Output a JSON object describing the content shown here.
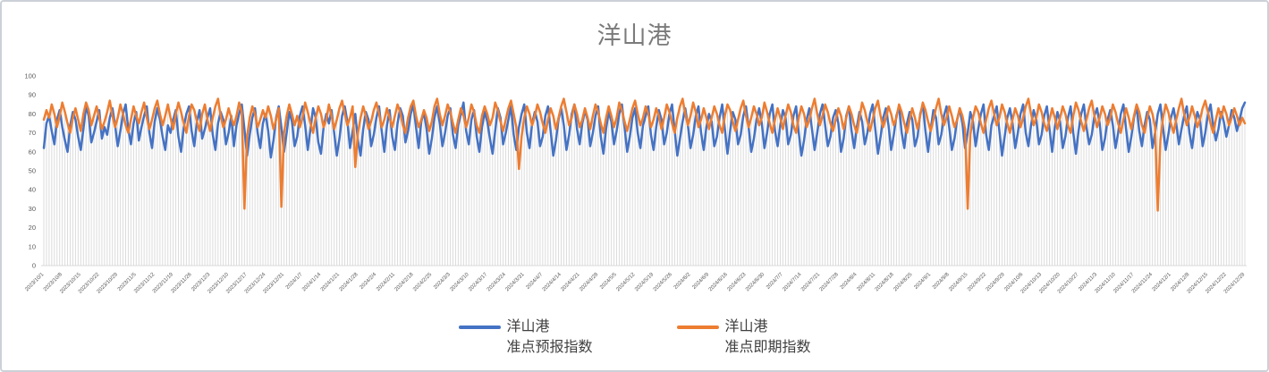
{
  "chart": {
    "title": "洋山港",
    "title_color": "#7b7b7b",
    "background": "#ffffff",
    "frame_border_color": "#ccd1d8"
  },
  "legend": {
    "items": [
      {
        "label_line1": "洋山港",
        "label_line2": "准点预报指数",
        "color": "#4472C4"
      },
      {
        "label_line1": "洋山港",
        "label_line2": "准点即期指数",
        "color": "#ED7D31"
      }
    ]
  },
  "chart_data": {
    "type": "line",
    "title": "洋山港",
    "x_frequency": "daily",
    "x_start_date": "2023/10/1",
    "x_end_date": "2024/12/29",
    "n_points": 456,
    "x_label_every_n_days": 7,
    "x_tick_labels": [
      "2023/10/1",
      "2023/10/8",
      "2023/10/15",
      "2023/10/22",
      "2023/10/29",
      "2023/11/5",
      "2023/11/12",
      "2023/11/19",
      "2023/11/26",
      "2023/12/3",
      "2023/12/10",
      "2023/12/17",
      "2023/12/24",
      "2023/12/31",
      "2024/1/7",
      "2024/1/14",
      "2024/1/21",
      "2024/1/28",
      "2024/2/4",
      "2024/2/11",
      "2024/2/18",
      "2024/2/25",
      "2024/3/3",
      "2024/3/10",
      "2024/3/17",
      "2024/3/24",
      "2024/3/31",
      "2024/4/7",
      "2024/4/14",
      "2024/4/21",
      "2024/4/28",
      "2024/5/5",
      "2024/5/12",
      "2024/5/19",
      "2024/5/26",
      "2024/6/2",
      "2024/6/9",
      "2024/6/16",
      "2024/6/23",
      "2024/6/30",
      "2024/7/7",
      "2024/7/14",
      "2024/7/21",
      "2024/7/28",
      "2024/8/4",
      "2024/8/11",
      "2024/8/18",
      "2024/8/25",
      "2024/9/1",
      "2024/9/8",
      "2024/9/15",
      "2024/9/22",
      "2024/9/29",
      "2024/10/6",
      "2024/10/13",
      "2024/10/20",
      "2024/10/27",
      "2024/11/3",
      "2024/11/10",
      "2024/11/17",
      "2024/11/24",
      "2024/12/1",
      "2024/12/8",
      "2024/12/15",
      "2024/12/22",
      "2024/12/29"
    ],
    "ylim": [
      0,
      100
    ],
    "y_ticks": [
      0,
      10,
      20,
      30,
      40,
      50,
      60,
      70,
      80,
      90,
      100
    ],
    "grid": "vertical-drop-lines",
    "drop_line_color": "#dcdcdc",
    "axis_color": "#d9d9d9",
    "tick_label_color": "#595959",
    "legend_position": "bottom",
    "series": [
      {
        "name": "洋山港 准点预报指数",
        "color": "#4472C4",
        "values": [
          62,
          75,
          79,
          71,
          64,
          77,
          82,
          73,
          66,
          60,
          74,
          81,
          77,
          68,
          61,
          72,
          84,
          79,
          65,
          70,
          76,
          82,
          67,
          73,
          69,
          78,
          83,
          74,
          63,
          71,
          80,
          85,
          72,
          64,
          75,
          81,
          66,
          73,
          79,
          84,
          70,
          62,
          76,
          83,
          77,
          68,
          61,
          74,
          70,
          77,
          82,
          68,
          60,
          73,
          80,
          84,
          71,
          63,
          76,
          82,
          67,
          72,
          78,
          83,
          69,
          61,
          75,
          81,
          77,
          64,
          70,
          79,
          63,
          74,
          80,
          85,
          72,
          58,
          69,
          78,
          83,
          70,
          62,
          75,
          80,
          71,
          57,
          66,
          78,
          84,
          73,
          60,
          70,
          81,
          76,
          63,
          68,
          79,
          84,
          74,
          61,
          72,
          83,
          78,
          65,
          59,
          73,
          80,
          75,
          82,
          70,
          58,
          67,
          79,
          84,
          76,
          62,
          71,
          80,
          66,
          58,
          72,
          81,
          77,
          63,
          69,
          78,
          84,
          71,
          60,
          74,
          82,
          68,
          61,
          75,
          83,
          79,
          65,
          71,
          80,
          85,
          73,
          62,
          76,
          81,
          72,
          59,
          67,
          78,
          84,
          75,
          63,
          70,
          79,
          83,
          69,
          62,
          74,
          80,
          86,
          71,
          64,
          77,
          82,
          68,
          60,
          73,
          81,
          76,
          67,
          59,
          71,
          83,
          78,
          64,
          70,
          77,
          84,
          69,
          61,
          73,
          80,
          85,
          70,
          62,
          75,
          81,
          76,
          63,
          68,
          79,
          84,
          71,
          58,
          66,
          77,
          83,
          74,
          61,
          69,
          80,
          85,
          72,
          64,
          75,
          82,
          77,
          63,
          70,
          79,
          84,
          68,
          59,
          72,
          81,
          76,
          64,
          71,
          80,
          85,
          73,
          60,
          68,
          78,
          83,
          70,
          62,
          74,
          79,
          84,
          69,
          61,
          73,
          82,
          77,
          64,
          70,
          80,
          85,
          71,
          58,
          67,
          76,
          83,
          74,
          62,
          69,
          79,
          84,
          70,
          61,
          73,
          80,
          76,
          63,
          68,
          78,
          85,
          72,
          59,
          71,
          81,
          77,
          64,
          69,
          79,
          84,
          73,
          60,
          67,
          77,
          83,
          75,
          62,
          70,
          80,
          85,
          71,
          63,
          74,
          82,
          78,
          64,
          69,
          79,
          84,
          70,
          58,
          66,
          77,
          83,
          72,
          61,
          70,
          80,
          85,
          74,
          63,
          68,
          78,
          82,
          75,
          60,
          67,
          79,
          84,
          71,
          62,
          73,
          81,
          76,
          64,
          70,
          80,
          85,
          72,
          59,
          68,
          78,
          83,
          74,
          61,
          69,
          79,
          84,
          70,
          62,
          75,
          81,
          77,
          63,
          68,
          80,
          85,
          71,
          60,
          72,
          82,
          78,
          64,
          69,
          79,
          84,
          73,
          61,
          67,
          77,
          83,
          75,
          62,
          70,
          81,
          76,
          63,
          72,
          80,
          85,
          69,
          61,
          74,
          79,
          84,
          71,
          58,
          68,
          78,
          83,
          75,
          62,
          70,
          80,
          85,
          70,
          63,
          74,
          82,
          77,
          64,
          69,
          79,
          84,
          72,
          60,
          73,
          81,
          76,
          62,
          68,
          78,
          84,
          70,
          59,
          71,
          80,
          85,
          73,
          64,
          69,
          79,
          83,
          75,
          61,
          67,
          77,
          82,
          74,
          62,
          70,
          80,
          85,
          72,
          60,
          68,
          78,
          84,
          71,
          63,
          74,
          81,
          77,
          62,
          70,
          80,
          85,
          73,
          61,
          69,
          78,
          83,
          75,
          64,
          72,
          79,
          84,
          70,
          62,
          73,
          81,
          77,
          63,
          70,
          80,
          85,
          74,
          66,
          72,
          81,
          76,
          68,
          74,
          82,
          78,
          71,
          77,
          83,
          86
        ]
      },
      {
        "name": "洋山港 准点即期指数",
        "color": "#ED7D31",
        "values": [
          77,
          82,
          78,
          85,
          80,
          73,
          79,
          86,
          81,
          75,
          70,
          78,
          83,
          77,
          71,
          80,
          86,
          82,
          74,
          79,
          84,
          78,
          72,
          76,
          81,
          87,
          79,
          73,
          78,
          85,
          80,
          74,
          70,
          77,
          84,
          79,
          75,
          81,
          86,
          78,
          72,
          77,
          83,
          87,
          80,
          74,
          79,
          85,
          78,
          72,
          80,
          86,
          81,
          75,
          70,
          79,
          85,
          82,
          76,
          71,
          80,
          85,
          77,
          71,
          78,
          84,
          88,
          79,
          73,
          77,
          83,
          78,
          74,
          79,
          86,
          81,
          30,
          68,
          78,
          84,
          80,
          73,
          77,
          82,
          78,
          84,
          79,
          72,
          77,
          83,
          31,
          70,
          79,
          85,
          80,
          74,
          79,
          73,
          78,
          86,
          81,
          75,
          70,
          78,
          84,
          80,
          73,
          77,
          85,
          79,
          72,
          77,
          83,
          87,
          80,
          74,
          78,
          84,
          52,
          70,
          78,
          84,
          79,
          72,
          76,
          82,
          86,
          80,
          73,
          77,
          83,
          78,
          73,
          79,
          85,
          81,
          74,
          70,
          78,
          84,
          87,
          79,
          73,
          77,
          82,
          78,
          71,
          76,
          84,
          88,
          80,
          74,
          79,
          85,
          81,
          75,
          70,
          77,
          83,
          79,
          73,
          78,
          85,
          81,
          74,
          70,
          79,
          84,
          80,
          74,
          78,
          86,
          82,
          76,
          71,
          77,
          83,
          87,
          80,
          73,
          51,
          68,
          78,
          84,
          80,
          74,
          79,
          85,
          81,
          75,
          70,
          77,
          83,
          79,
          72,
          78,
          84,
          88,
          81,
          74,
          78,
          85,
          80,
          73,
          77,
          83,
          78,
          72,
          79,
          85,
          81,
          75,
          70,
          78,
          84,
          79,
          73,
          78,
          86,
          82,
          76,
          71,
          77,
          83,
          87,
          80,
          74,
          78,
          84,
          80,
          73,
          77,
          83,
          79,
          72,
          78,
          85,
          81,
          75,
          70,
          78,
          84,
          88,
          80,
          74,
          79,
          86,
          81,
          73,
          77,
          83,
          78,
          72,
          78,
          84,
          80,
          74,
          70,
          79,
          85,
          82,
          76,
          71,
          77,
          83,
          87,
          79,
          73,
          78,
          84,
          80,
          74,
          78,
          86,
          81,
          75,
          70,
          77,
          83,
          78,
          72,
          79,
          85,
          81,
          74,
          70,
          78,
          84,
          80,
          73,
          77,
          83,
          88,
          80,
          74,
          79,
          85,
          81,
          75,
          71,
          77,
          83,
          79,
          72,
          78,
          84,
          80,
          74,
          70,
          78,
          86,
          82,
          76,
          71,
          77,
          83,
          87,
          79,
          73,
          78,
          84,
          80,
          74,
          78,
          85,
          81,
          75,
          70,
          77,
          83,
          78,
          72,
          79,
          86,
          82,
          76,
          71,
          77,
          83,
          88,
          80,
          74,
          78,
          84,
          79,
          73,
          77,
          83,
          79,
          72,
          30,
          69,
          78,
          84,
          81,
          75,
          70,
          77,
          83,
          87,
          80,
          74,
          78,
          85,
          81,
          75,
          70,
          77,
          83,
          79,
          73,
          78,
          84,
          88,
          80,
          74,
          78,
          85,
          81,
          75,
          71,
          77,
          83,
          78,
          72,
          78,
          84,
          80,
          74,
          70,
          79,
          86,
          82,
          76,
          71,
          77,
          83,
          87,
          79,
          73,
          78,
          84,
          80,
          74,
          78,
          85,
          81,
          75,
          70,
          77,
          83,
          78,
          72,
          79,
          85,
          81,
          74,
          70,
          78,
          84,
          80,
          73,
          29,
          66,
          78,
          85,
          81,
          75,
          70,
          77,
          83,
          88,
          80,
          74,
          78,
          84,
          79,
          73,
          77,
          83,
          87,
          81,
          75,
          70,
          77,
          83,
          78,
          84,
          80,
          74,
          78,
          83,
          79,
          74,
          78,
          75
        ]
      }
    ]
  }
}
